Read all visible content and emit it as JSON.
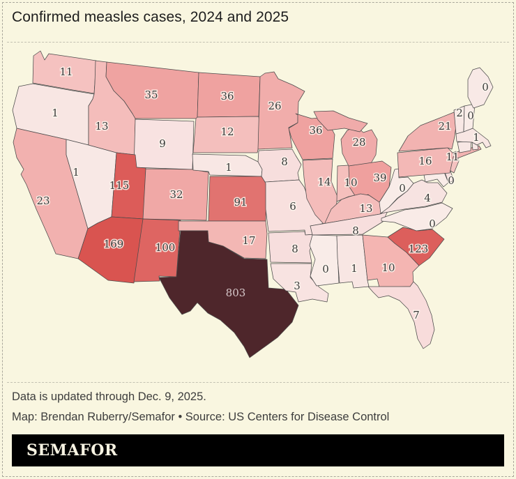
{
  "title": "Confirmed measles cases, 2024 and 2025",
  "footer": {
    "updated": "Data is updated through Dec. 9, 2025.",
    "credit": "Map: Brendan Ruberry/Semafor • Source: US Centers for Disease Control"
  },
  "logo": "SEMAFOR",
  "colors": {
    "background": "#f9f6e0",
    "logo_bar": "#000000",
    "state_stroke": "#4a4a4a",
    "label_dark": "#3a3a3a",
    "label_light": "#d8cacc",
    "scale_low": "#f9ece8",
    "scale_high": "#4e262b"
  },
  "chart_data": {
    "type": "choropleth_map",
    "title": "Confirmed measles cases, 2024 and 2025",
    "region": "United States (lower 48 states)",
    "unit": "confirmed measles cases",
    "updated_through": "Dec. 9, 2025",
    "source": "US Centers for Disease Control",
    "states": [
      {
        "id": "WA",
        "name": "Washington",
        "value": 11,
        "color": "#f5c2c0"
      },
      {
        "id": "OR",
        "name": "Oregon",
        "value": 1,
        "color": "#f8e6e3"
      },
      {
        "id": "CA",
        "name": "California",
        "value": 23,
        "color": "#f2b1af"
      },
      {
        "id": "NV",
        "name": "Nevada",
        "value": 1,
        "color": "#f8e8e5"
      },
      {
        "id": "ID",
        "name": "Idaho",
        "value": 13,
        "color": "#f4bdbb"
      },
      {
        "id": "MT",
        "name": "Montana",
        "value": 35,
        "color": "#efa3a1"
      },
      {
        "id": "WY",
        "name": "Wyoming",
        "value": 9,
        "color": "#f8e2e1"
      },
      {
        "id": "UT",
        "name": "Utah",
        "value": 115,
        "color": "#dc5c59"
      },
      {
        "id": "CO",
        "name": "Colorado",
        "value": 32,
        "color": "#f0a8a6"
      },
      {
        "id": "AZ",
        "name": "Arizona",
        "value": 169,
        "color": "#d95450"
      },
      {
        "id": "NM",
        "name": "New Mexico",
        "value": 100,
        "color": "#de6562"
      },
      {
        "id": "ND",
        "name": "North Dakota",
        "value": 36,
        "color": "#efa2a0"
      },
      {
        "id": "SD",
        "name": "South Dakota",
        "value": 12,
        "color": "#f4bfbd"
      },
      {
        "id": "NE",
        "name": "Nebraska",
        "value": 1,
        "color": "#f8e7e4"
      },
      {
        "id": "KS",
        "name": "Kansas",
        "value": 91,
        "color": "#e17370"
      },
      {
        "id": "OK",
        "name": "Oklahoma",
        "value": 17,
        "color": "#f3b7b4"
      },
      {
        "id": "TX",
        "name": "Texas",
        "value": 803,
        "color": "#4e262b"
      },
      {
        "id": "MN",
        "name": "Minnesota",
        "value": 26,
        "color": "#f1adab"
      },
      {
        "id": "IA",
        "name": "Iowa",
        "value": 8,
        "color": "#f7dedd"
      },
      {
        "id": "MO",
        "name": "Missouri",
        "value": 6,
        "color": "#f8e0de"
      },
      {
        "id": "AR",
        "name": "Arkansas",
        "value": 8,
        "color": "#f7dedd"
      },
      {
        "id": "LA",
        "name": "Louisiana",
        "value": 3,
        "color": "#f8e3e1"
      },
      {
        "id": "WI",
        "name": "Wisconsin",
        "value": 36,
        "color": "#efa2a0"
      },
      {
        "id": "IL",
        "name": "Illinois",
        "value": 14,
        "color": "#f4bcba"
      },
      {
        "id": "IN",
        "name": "Indiana",
        "value": 10,
        "color": "#f5c0bd"
      },
      {
        "id": "MI",
        "name": "Michigan",
        "value": 28,
        "color": "#f0abaa"
      },
      {
        "id": "OH",
        "name": "Ohio",
        "value": 39,
        "color": "#efa09e"
      },
      {
        "id": "KY",
        "name": "Kentucky",
        "value": 13,
        "color": "#f4bdbb"
      },
      {
        "id": "TN",
        "name": "Tennessee",
        "value": 8,
        "color": "#f7dedd"
      },
      {
        "id": "MS",
        "name": "Mississippi",
        "value": 0,
        "color": "#f9ece8"
      },
      {
        "id": "AL",
        "name": "Alabama",
        "value": 1,
        "color": "#f8e6e3"
      },
      {
        "id": "GA",
        "name": "Georgia",
        "value": 10,
        "color": "#f4b5b2"
      },
      {
        "id": "FL",
        "name": "Florida",
        "value": 7,
        "color": "#f8dcdb"
      },
      {
        "id": "SC",
        "name": "South Carolina",
        "value": 123,
        "color": "#dc5f5c"
      },
      {
        "id": "NC",
        "name": "North Carolina",
        "value": 0,
        "color": "#f9ebe7"
      },
      {
        "id": "VA",
        "name": "Virginia",
        "value": 4,
        "color": "#f7e3e1"
      },
      {
        "id": "WV",
        "name": "West Virginia",
        "value": 0,
        "color": "#f9ece8"
      },
      {
        "id": "MD",
        "name": "Maryland",
        "value": 0,
        "color": "#f9ece8"
      },
      {
        "id": "DE",
        "name": "Delaware",
        "value": null,
        "color": "#f7dfde"
      },
      {
        "id": "NJ",
        "name": "New Jersey",
        "value": 11,
        "color": "#f5c2c0"
      },
      {
        "id": "PA",
        "name": "Pennsylvania",
        "value": 16,
        "color": "#f3b8b6"
      },
      {
        "id": "NY",
        "name": "New York",
        "value": 21,
        "color": "#f2b3b1"
      },
      {
        "id": "CT",
        "name": "Connecticut",
        "value": null,
        "color": "#f8e7e4"
      },
      {
        "id": "RI",
        "name": "Rhode Island",
        "value": null,
        "color": "#f8e7e4"
      },
      {
        "id": "MA",
        "name": "Massachusetts",
        "value": 1,
        "color": "#f8e6e3"
      },
      {
        "id": "VT",
        "name": "Vermont",
        "value": 2,
        "color": "#f8e8e5"
      },
      {
        "id": "NH",
        "name": "New Hampshire",
        "value": 0,
        "color": "#f9ece8"
      },
      {
        "id": "ME",
        "name": "Maine",
        "value": 0,
        "color": "#f8e9e6"
      }
    ]
  }
}
